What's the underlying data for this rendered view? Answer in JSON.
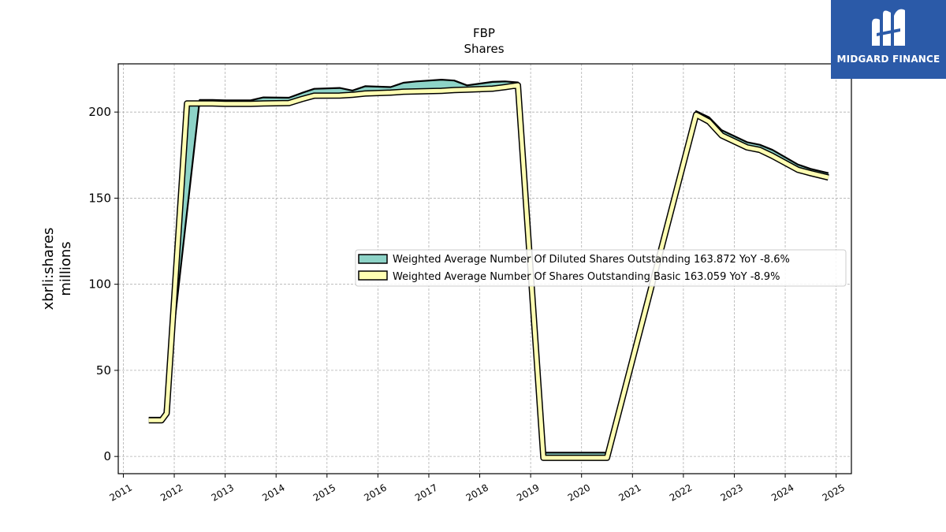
{
  "chart_data": {
    "type": "area",
    "title": "FBP",
    "subtitle": "Shares",
    "ylabel_line1": "xbrli:shares",
    "ylabel_line2": "millions",
    "xlim": [
      2010.9,
      2025.3
    ],
    "ylim": [
      -10,
      228
    ],
    "grid": true,
    "legend_position": "center-right",
    "x_ticks": [
      2011,
      2012,
      2013,
      2014,
      2015,
      2016,
      2017,
      2018,
      2019,
      2020,
      2021,
      2022,
      2023,
      2024,
      2025
    ],
    "y_ticks": [
      0,
      50,
      100,
      150,
      200
    ],
    "series": [
      {
        "name": "Weighted Average Number Of Diluted Shares Outstanding",
        "legend_label": "Weighted Average Number Of Diluted Shares Outstanding  163.872 YoY -8.6%",
        "color": "#8dd3c7",
        "points": [
          [
            2011.5,
            22.5
          ],
          [
            2011.75,
            22.5
          ],
          [
            2011.8,
            24
          ],
          [
            2012.5,
            207
          ],
          [
            2012.75,
            207
          ],
          [
            2013.0,
            206.8
          ],
          [
            2013.5,
            206.8
          ],
          [
            2013.75,
            208.5
          ],
          [
            2014.25,
            208.3
          ],
          [
            2014.5,
            211
          ],
          [
            2014.75,
            213.5
          ],
          [
            2015.25,
            214
          ],
          [
            2015.5,
            212.5
          ],
          [
            2015.75,
            215
          ],
          [
            2016.25,
            214.5
          ],
          [
            2016.5,
            217
          ],
          [
            2016.75,
            217.8
          ],
          [
            2017.25,
            218.8
          ],
          [
            2017.5,
            218.3
          ],
          [
            2017.75,
            215.5
          ],
          [
            2018.0,
            216.5
          ],
          [
            2018.25,
            217.5
          ],
          [
            2018.5,
            217.8
          ],
          [
            2018.75,
            217.2
          ],
          [
            2019.25,
            2.2
          ],
          [
            2020.5,
            2.2
          ],
          [
            2022.25,
            200.5
          ],
          [
            2022.5,
            197
          ],
          [
            2022.75,
            189.5
          ],
          [
            2023.25,
            182.5
          ],
          [
            2023.5,
            181
          ],
          [
            2023.75,
            178
          ],
          [
            2024.25,
            169.5
          ],
          [
            2024.5,
            167
          ],
          [
            2024.85,
            164.5
          ]
        ]
      },
      {
        "name": "Weighted Average Number Of Shares Outstanding Basic",
        "legend_label": "Weighted Average Number Of Shares Outstanding Basic  163.059 YoY -8.9%",
        "color": "#ffffb3",
        "points": [
          [
            2011.5,
            21
          ],
          [
            2011.75,
            21
          ],
          [
            2011.85,
            25
          ],
          [
            2012.25,
            205
          ],
          [
            2012.75,
            205
          ],
          [
            2013.0,
            204.8
          ],
          [
            2013.5,
            204.8
          ],
          [
            2013.75,
            205
          ],
          [
            2014.25,
            205.2
          ],
          [
            2014.5,
            207.5
          ],
          [
            2014.75,
            209.5
          ],
          [
            2015.25,
            209.6
          ],
          [
            2015.5,
            210
          ],
          [
            2015.75,
            210.8
          ],
          [
            2016.25,
            211.3
          ],
          [
            2016.5,
            211.8
          ],
          [
            2016.75,
            212
          ],
          [
            2017.25,
            212.3
          ],
          [
            2017.5,
            212.8
          ],
          [
            2017.75,
            213
          ],
          [
            2018.0,
            213.3
          ],
          [
            2018.25,
            213.6
          ],
          [
            2018.5,
            214.5
          ],
          [
            2018.75,
            215.6
          ],
          [
            2019.25,
            -0.8
          ],
          [
            2020.5,
            -0.8
          ],
          [
            2022.25,
            198.5
          ],
          [
            2022.5,
            194.5
          ],
          [
            2022.75,
            186.5
          ],
          [
            2023.25,
            179.5
          ],
          [
            2023.5,
            178
          ],
          [
            2023.75,
            174.5
          ],
          [
            2024.25,
            166.5
          ],
          [
            2024.5,
            164.5
          ],
          [
            2024.85,
            162
          ]
        ]
      }
    ]
  },
  "logo": {
    "text": "MIDGARD FINANCE",
    "background": "#2b5aa8"
  }
}
